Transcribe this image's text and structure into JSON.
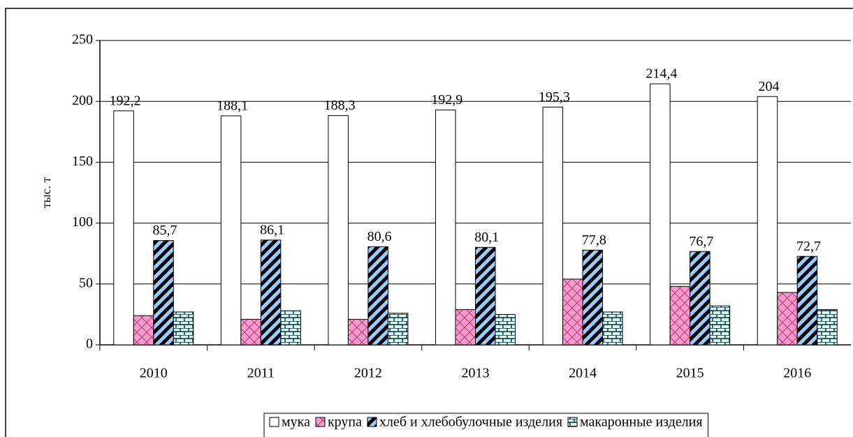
{
  "chart_data": {
    "type": "bar",
    "y_axis_label": "тыс. т",
    "categories": [
      "2010",
      "2011",
      "2012",
      "2013",
      "2014",
      "2015",
      "2016"
    ],
    "series": [
      {
        "name": "мука",
        "color": "#ffffff",
        "values": [
          192.2,
          188.1,
          188.3,
          192.9,
          195.3,
          214.4,
          204
        ],
        "value_labels": [
          "192,2",
          "188,1",
          "188,3",
          "192,9",
          "195,3",
          "214,4",
          "204"
        ]
      },
      {
        "name": "крупа",
        "color": "#ff99cc",
        "values": [
          24,
          21,
          21,
          29,
          54,
          48,
          43
        ]
      },
      {
        "name": "хлеб и хлебобулочные изделия",
        "color": "#99ccff",
        "values": [
          85.7,
          86.1,
          80.6,
          80.1,
          77.8,
          76.7,
          72.7
        ],
        "value_labels": [
          "85,7",
          "86,1",
          "80,6",
          "80,1",
          "77,8",
          "76,7",
          "72,7"
        ]
      },
      {
        "name": "макаронные изделия",
        "color": "#ccffff",
        "values": [
          27,
          28,
          26,
          25,
          27,
          32,
          29
        ]
      }
    ],
    "ylim": [
      0,
      250
    ],
    "yticks": [
      0,
      50,
      100,
      150,
      200,
      250
    ],
    "grid": true,
    "legend": "bottom"
  }
}
